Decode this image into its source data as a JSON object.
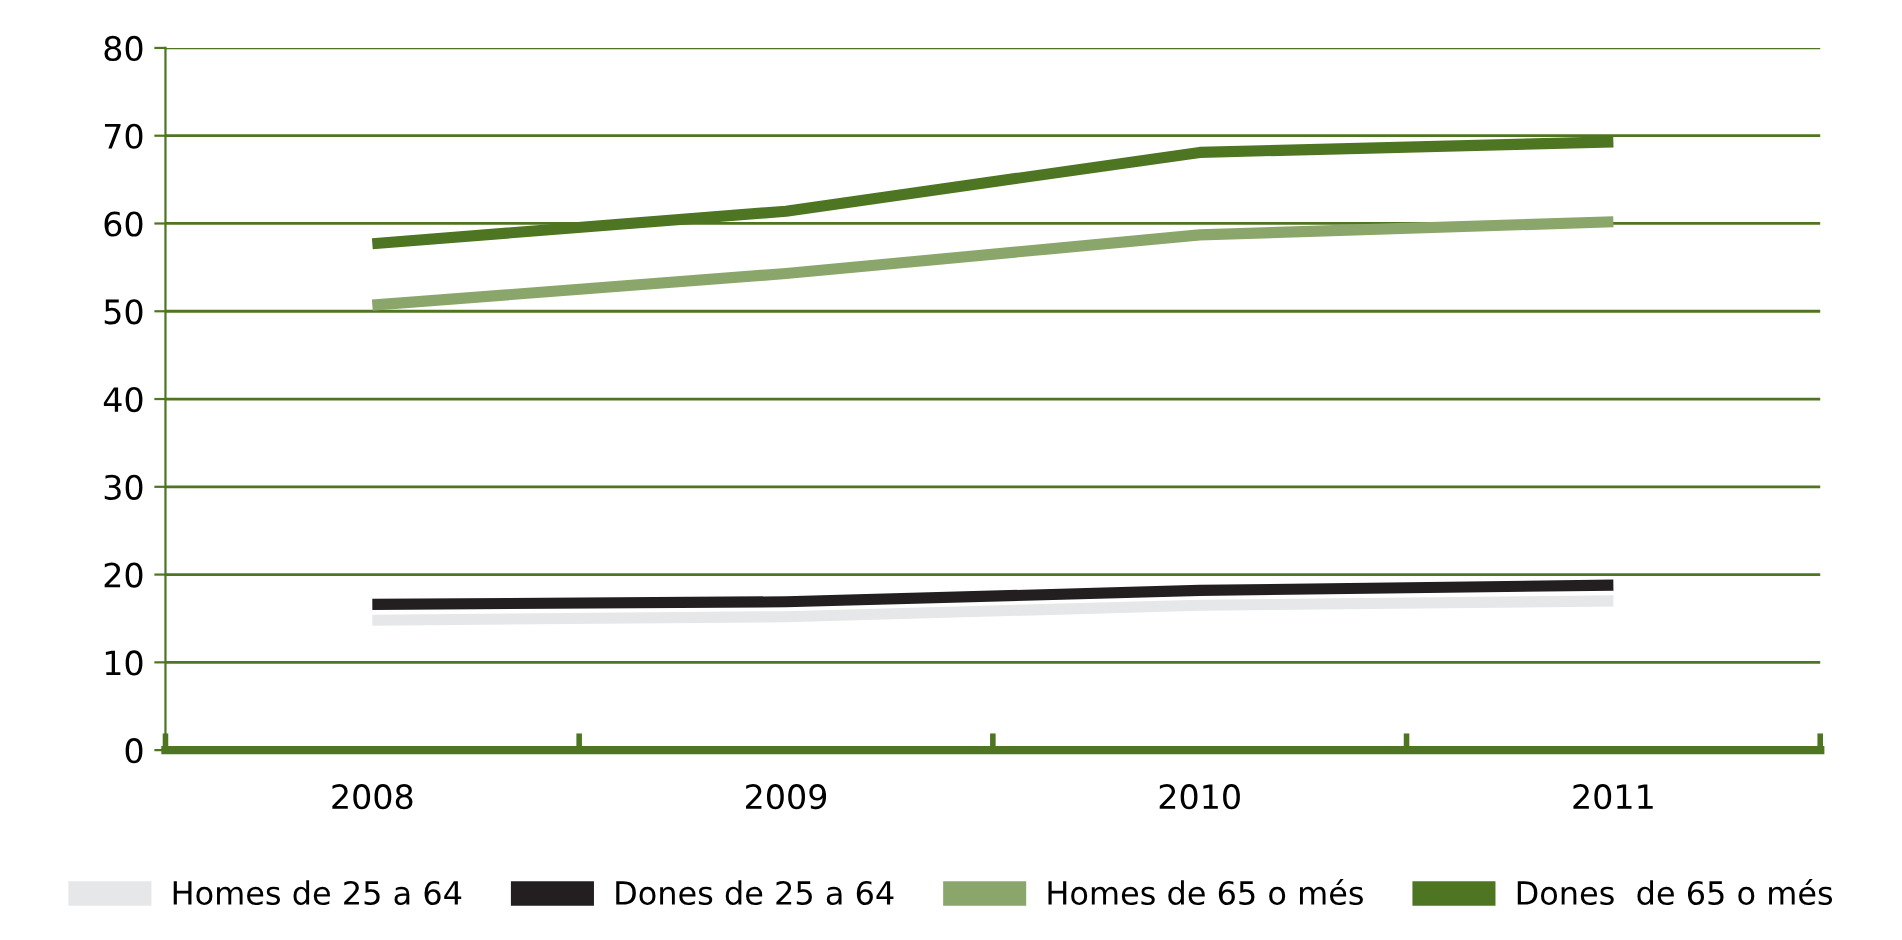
{
  "chart_data": {
    "type": "line",
    "categories": [
      "2008",
      "2009",
      "2010",
      "2011"
    ],
    "series": [
      {
        "name": "Homes de 25 a 64",
        "color": "#e6e7e8",
        "values": [
          14.8,
          15.2,
          16.5,
          17.0
        ]
      },
      {
        "name": "Dones de 25 a 64",
        "color": "#231f20",
        "values": [
          16.6,
          16.9,
          18.2,
          18.8
        ]
      },
      {
        "name": "Homes de 65 o més",
        "color": "#8ba66a",
        "values": [
          50.7,
          54.3,
          58.7,
          60.2
        ]
      },
      {
        "name": "Dones  de 65 o més",
        "color": "#4e7521",
        "values": [
          57.7,
          61.4,
          68.1,
          69.3
        ]
      }
    ],
    "ylim": [
      0,
      80
    ],
    "yticks": [
      0,
      10,
      20,
      30,
      40,
      50,
      60,
      70,
      80
    ],
    "grid": "y",
    "legend": "bottom",
    "marker": "none",
    "line_style": "solid"
  }
}
